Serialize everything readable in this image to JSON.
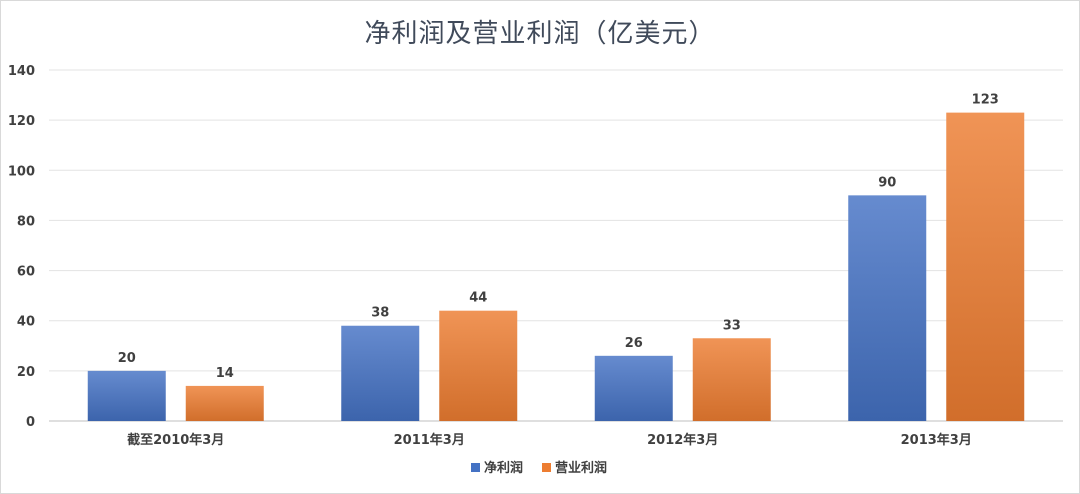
{
  "chart_data": {
    "type": "bar",
    "title": "净利润及营业利润（亿美元）",
    "categories": [
      "截至2010年3月",
      "2011年3月",
      "2012年3月",
      "2013年3月"
    ],
    "series": [
      {
        "name": "净利润",
        "values": [
          20,
          38,
          26,
          90
        ],
        "color": "#4472c4"
      },
      {
        "name": "营业利润",
        "values": [
          14,
          44,
          33,
          123
        ],
        "color": "#ed7d31"
      }
    ],
    "ylim": [
      0,
      140
    ],
    "yticks": [
      0,
      20,
      40,
      60,
      80,
      100,
      120,
      140
    ],
    "grid": true,
    "legend": "bottom-center",
    "data_labels": true
  }
}
